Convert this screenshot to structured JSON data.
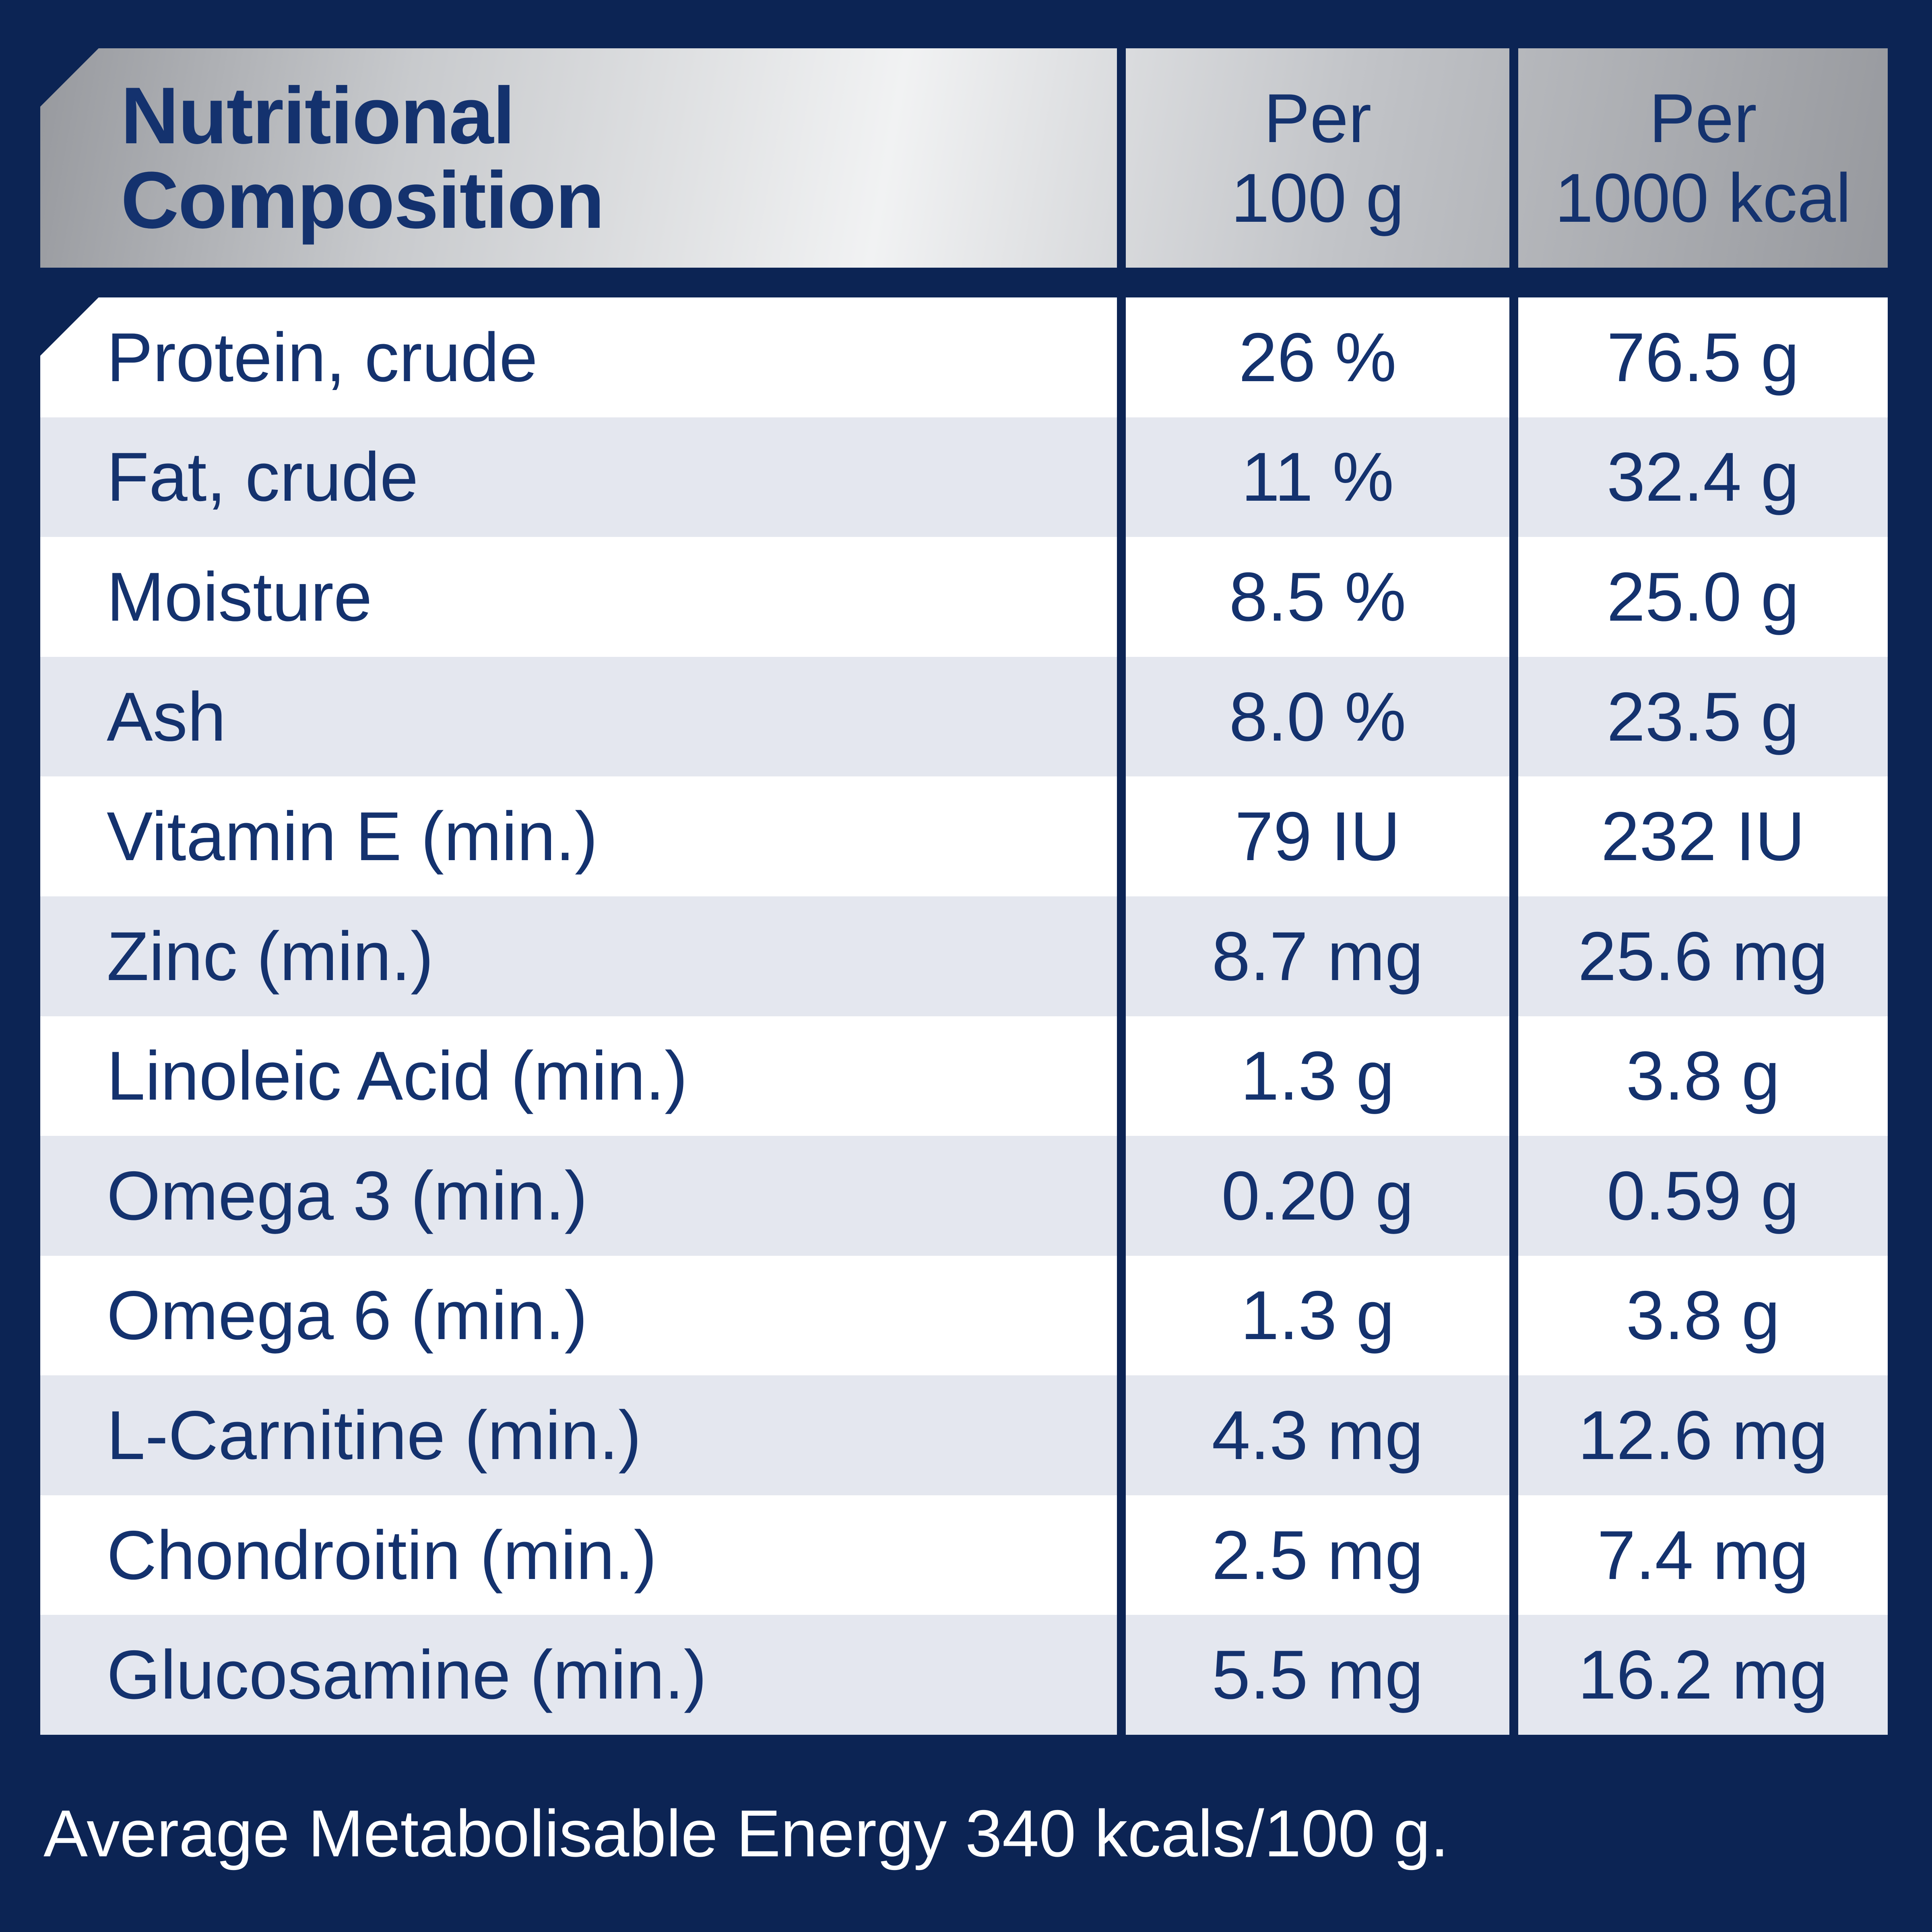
{
  "colors": {
    "navy_bg": "#0c2454",
    "text_navy": "#14326e",
    "row_alt": "#e4e7ef",
    "row_white": "#ffffff",
    "silver_dark": "#97999e",
    "silver_mid": "#c8cacd",
    "silver_light": "#f1f2f3",
    "silver_mid2": "#c2c4c8",
    "footer_text": "#ffffff"
  },
  "header": {
    "title_line1": "Nutritional",
    "title_line2": "Composition",
    "col_per_100g_line1": "Per",
    "col_per_100g_line2": "100 g",
    "col_per_1000kcal_line1": "Per",
    "col_per_1000kcal_line2": "1000 kcal"
  },
  "rows": [
    {
      "label": "Protein, crude",
      "per_100g": "26 %",
      "per_1000kcal": "76.5 g"
    },
    {
      "label": "Fat, crude",
      "per_100g": "11 %",
      "per_1000kcal": "32.4 g"
    },
    {
      "label": "Moisture",
      "per_100g": "8.5 %",
      "per_1000kcal": "25.0 g"
    },
    {
      "label": "Ash",
      "per_100g": "8.0 %",
      "per_1000kcal": "23.5 g"
    },
    {
      "label": "Vitamin E (min.)",
      "per_100g": "79 IU",
      "per_1000kcal": "232 IU"
    },
    {
      "label": "Zinc (min.)",
      "per_100g": "8.7 mg",
      "per_1000kcal": "25.6 mg"
    },
    {
      "label": "Linoleic Acid (min.)",
      "per_100g": "1.3 g",
      "per_1000kcal": "3.8 g"
    },
    {
      "label": "Omega 3 (min.)",
      "per_100g": "0.20 g",
      "per_1000kcal": "0.59 g"
    },
    {
      "label": "Omega 6 (min.)",
      "per_100g": "1.3 g",
      "per_1000kcal": "3.8 g"
    },
    {
      "label": "L-Carnitine (min.)",
      "per_100g": "4.3 mg",
      "per_1000kcal": "12.6 mg"
    },
    {
      "label": "Chondroitin (min.)",
      "per_100g": "2.5 mg",
      "per_1000kcal": "7.4 mg"
    },
    {
      "label": "Glucosamine (min.)",
      "per_100g": "5.5 mg",
      "per_1000kcal": "16.2 mg"
    }
  ],
  "footer": {
    "text": "Average Metabolisable Energy 340 kcals/100 g."
  }
}
